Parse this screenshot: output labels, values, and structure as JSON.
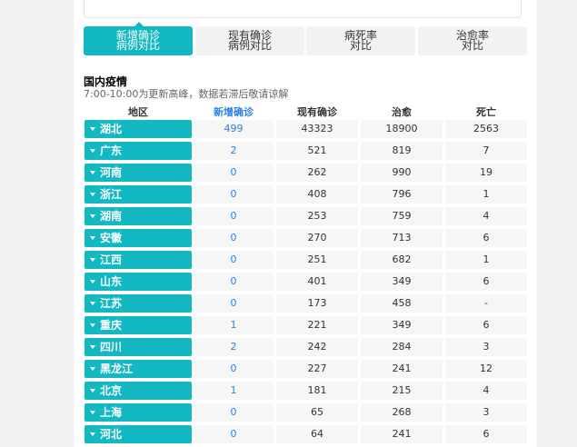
{
  "tabs": [
    {
      "line1": "新增确诊",
      "line2": "病例对比",
      "active": true
    },
    {
      "line1": "现有确诊",
      "line2": "病例对比",
      "active": false
    },
    {
      "line1": "病死率",
      "line2": "对比",
      "active": false
    },
    {
      "line1": "治愈率",
      "line2": "对比",
      "active": false
    }
  ],
  "section": {
    "title": "国内疫情",
    "note": "7:00-10:00为更新高峰，数据若滞后敬请谅解"
  },
  "table": {
    "headers": [
      "地区",
      "新增确诊",
      "现有确诊",
      "治愈",
      "死亡"
    ],
    "rows": [
      {
        "region": "湖北",
        "new": "499",
        "current": "43323",
        "cured": "18900",
        "dead": "2563"
      },
      {
        "region": "广东",
        "new": "2",
        "current": "521",
        "cured": "819",
        "dead": "7"
      },
      {
        "region": "河南",
        "new": "0",
        "current": "262",
        "cured": "990",
        "dead": "19"
      },
      {
        "region": "浙江",
        "new": "0",
        "current": "408",
        "cured": "796",
        "dead": "1"
      },
      {
        "region": "湖南",
        "new": "0",
        "current": "253",
        "cured": "759",
        "dead": "4"
      },
      {
        "region": "安徽",
        "new": "0",
        "current": "270",
        "cured": "713",
        "dead": "6"
      },
      {
        "region": "江西",
        "new": "0",
        "current": "251",
        "cured": "682",
        "dead": "1"
      },
      {
        "region": "山东",
        "new": "0",
        "current": "401",
        "cured": "349",
        "dead": "6"
      },
      {
        "region": "江苏",
        "new": "0",
        "current": "173",
        "cured": "458",
        "dead": "-"
      },
      {
        "region": "重庆",
        "new": "1",
        "current": "221",
        "cured": "349",
        "dead": "6"
      },
      {
        "region": "四川",
        "new": "2",
        "current": "242",
        "cured": "284",
        "dead": "3"
      },
      {
        "region": "黑龙江",
        "new": "0",
        "current": "227",
        "cured": "241",
        "dead": "12"
      },
      {
        "region": "北京",
        "new": "1",
        "current": "181",
        "cured": "215",
        "dead": "4"
      },
      {
        "region": "上海",
        "new": "0",
        "current": "65",
        "cured": "268",
        "dead": "3"
      },
      {
        "region": "河北",
        "new": "0",
        "current": "64",
        "cured": "241",
        "dead": "6"
      }
    ]
  },
  "colors": {
    "accent": "#12b8c2",
    "link_blue": "#2b80e0",
    "cell_bg": "#f6f6f6",
    "tab_bg": "#f2f2f2"
  },
  "icons": {
    "region_expand": "triangle-down-icon"
  }
}
